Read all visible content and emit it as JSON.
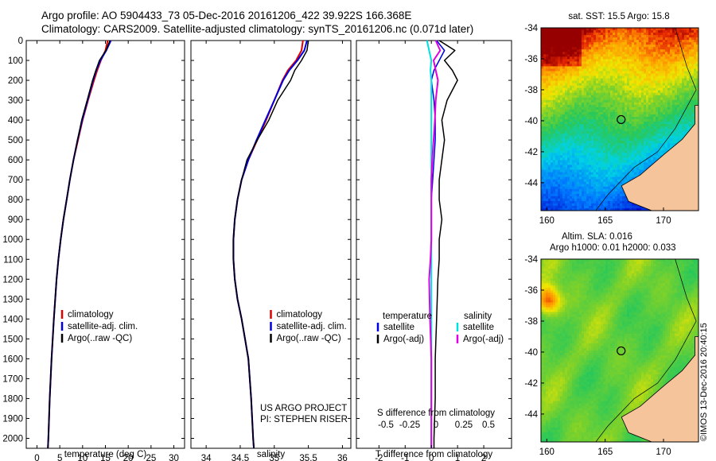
{
  "header": {
    "title_line1": "Argo profile: AO 5904433_73 05-Dec-2016 20161206_422 39.922S 166.368E",
    "title_line2": "Climatology: CARS2009. Satellite-adjusted climatology: synTS_20161206.nc (0.071d later)"
  },
  "colors": {
    "climatology": "#e00000",
    "satellite": "#0000e0",
    "argo": "#000000",
    "sat_salinity": "#00e0e0",
    "argo_adj_salinity": "#e000e0",
    "land": "#f5c49a"
  },
  "chart_data": [
    {
      "type": "line",
      "panel": "temperature",
      "xlabel": "temperature (deg C)",
      "ylabel": "",
      "xlim": [
        -2,
        32
      ],
      "ylim": [
        2050,
        0
      ],
      "xticks": [
        "0",
        "5",
        "10",
        "15",
        "20",
        "25",
        "30"
      ],
      "yticks": [
        "0",
        "100",
        "200",
        "300",
        "400",
        "500",
        "600",
        "700",
        "800",
        "900",
        "1000",
        "1100",
        "1200",
        "1300",
        "1400",
        "1500",
        "1600",
        "1700",
        "1800",
        "1900",
        "2000"
      ],
      "legend": [
        "climatology",
        "satellite-adj. clim.",
        "Argo(..raw -QC)"
      ],
      "depth": [
        0,
        50,
        100,
        150,
        200,
        300,
        400,
        500,
        600,
        700,
        800,
        900,
        1000,
        1100,
        1200,
        1400,
        1600,
        1800,
        2000,
        2050
      ],
      "series": [
        {
          "name": "climatology",
          "values": [
            15.5,
            15.0,
            14.0,
            13.2,
            12.5,
            11.2,
            10.0,
            9.0,
            8.0,
            7.2,
            6.5,
            5.8,
            5.2,
            4.7,
            4.3,
            3.7,
            3.2,
            2.8,
            2.5,
            2.4
          ]
        },
        {
          "name": "satellite-adj. clim.",
          "values": [
            16.2,
            15.2,
            13.9,
            13.0,
            12.3,
            11.1,
            9.9,
            8.9,
            8.0,
            7.2,
            6.5,
            5.8,
            5.2,
            4.7,
            4.3,
            3.7,
            3.2,
            2.8,
            2.5,
            2.4
          ]
        },
        {
          "name": "Argo(..raw -QC)",
          "values": [
            16.0,
            15.1,
            13.7,
            12.9,
            12.2,
            11.0,
            9.8,
            8.9,
            8.0,
            7.2,
            6.5,
            5.8,
            5.2,
            4.7,
            4.3,
            3.7,
            3.2,
            2.8,
            2.5,
            2.4
          ]
        }
      ]
    },
    {
      "type": "line",
      "panel": "salinity",
      "xlabel": "salinity",
      "xlim": [
        33.8,
        36.1
      ],
      "ylim": [
        2050,
        0
      ],
      "xticks": [
        "34",
        "34.5",
        "35",
        "35.5",
        "36"
      ],
      "legend": [
        "climatology",
        "satellite-adj. clim.",
        "Argo(..raw -QC)"
      ],
      "annotation_line1": "US ARGO PROJECT",
      "annotation_line2": "PI: STEPHEN RISER",
      "depth": [
        0,
        50,
        100,
        150,
        200,
        300,
        400,
        500,
        600,
        700,
        800,
        900,
        1000,
        1100,
        1200,
        1300,
        1400,
        1500,
        1600,
        1800,
        2000,
        2050
      ],
      "series": [
        {
          "name": "climatology",
          "values": [
            35.42,
            35.4,
            35.32,
            35.2,
            35.12,
            35.0,
            34.88,
            34.75,
            34.62,
            34.52,
            34.46,
            34.42,
            34.4,
            34.4,
            34.42,
            34.46,
            34.52,
            34.57,
            34.62,
            34.66,
            34.69,
            34.7
          ]
        },
        {
          "name": "satellite-adj. clim.",
          "values": [
            35.48,
            35.44,
            35.34,
            35.22,
            35.13,
            35.0,
            34.87,
            34.74,
            34.62,
            34.52,
            34.46,
            34.42,
            34.4,
            34.4,
            34.42,
            34.46,
            34.52,
            34.57,
            34.62,
            34.66,
            34.69,
            34.7
          ]
        },
        {
          "name": "Argo(..raw -QC)",
          "values": [
            35.5,
            35.48,
            35.4,
            35.3,
            35.24,
            35.05,
            34.92,
            34.75,
            34.6,
            34.52,
            34.46,
            34.42,
            34.4,
            34.4,
            34.42,
            34.46,
            34.52,
            34.57,
            34.62,
            34.66,
            34.69,
            34.7
          ]
        }
      ]
    },
    {
      "type": "line",
      "panel": "difference",
      "xlabel": "T difference from climatology",
      "x2label": "S difference from climatology",
      "xlim": [
        -2.8,
        3.0
      ],
      "ylim": [
        2050,
        0
      ],
      "xticks": [
        "-2",
        "-1",
        "0",
        "1",
        "2"
      ],
      "x2ticks": [
        "-0.5",
        "-0.25",
        "0",
        "0.25",
        "0.5"
      ],
      "legend_header_left": "temperature",
      "legend_header_right": "salinity",
      "legend": [
        "satellite",
        "Argo(-adj)",
        "satellite",
        "Argo(-adj)"
      ],
      "depth": [
        0,
        50,
        100,
        150,
        200,
        300,
        400,
        500,
        600,
        700,
        800,
        900,
        1000,
        1100,
        1200,
        1400,
        1600,
        1800,
        2000,
        2050
      ],
      "series": [
        {
          "name": "temperature satellite",
          "values": [
            0.2,
            0.5,
            0.3,
            0.1,
            0.0,
            0.1,
            0.15,
            0.15,
            0.1,
            0.05,
            0.0,
            0.0,
            0.0,
            0.0,
            0.0,
            0.0,
            0.0,
            0.0,
            0.0,
            0.0
          ]
        },
        {
          "name": "temperature Argo(-adj)",
          "values": [
            0.3,
            0.9,
            0.5,
            0.8,
            1.0,
            0.6,
            0.4,
            0.5,
            0.4,
            0.3,
            0.3,
            0.4,
            0.3,
            0.3,
            0.25,
            0.2,
            0.15,
            0.15,
            0.1,
            0.1
          ]
        },
        {
          "name": "salinity satellite",
          "values": [
            -0.1,
            -0.05,
            0.0,
            -0.02,
            0.0,
            0.0,
            0.0,
            0.0,
            0.0,
            0.0,
            0.0,
            0.0,
            0.0,
            0.0,
            0.0,
            0.0,
            0.0,
            0.0,
            0.0,
            0.0
          ]
        },
        {
          "name": "salinity Argo(-adj)",
          "values": [
            0.1,
            0.2,
            0.05,
            0.1,
            0.15,
            0.1,
            0.08,
            0.05,
            0.02,
            0.0,
            0.0,
            0.0,
            0.0,
            -0.02,
            -0.05,
            -0.03,
            0.0,
            0.0,
            0.0,
            0.0
          ]
        }
      ]
    },
    {
      "type": "heatmap",
      "panel": "sst-map",
      "title": "sat. SST: 15.5  Argo: 15.8",
      "xlim": [
        159.5,
        173
      ],
      "ylim": [
        -45.8,
        -34
      ],
      "xticks": [
        "160",
        "165",
        "170"
      ],
      "yticks": [
        "-34",
        "-36",
        "-38",
        "-40",
        "-42",
        "-44"
      ],
      "marker": {
        "lon": 166.368,
        "lat": -39.922
      }
    },
    {
      "type": "heatmap",
      "panel": "sla-map",
      "title": "Altim. SLA: 0.016",
      "subtitle": "Argo h1000: 0.01 h2000: 0.033",
      "xlim": [
        159.5,
        173
      ],
      "ylim": [
        -45.8,
        -34
      ],
      "xticks": [
        "160",
        "165",
        "170"
      ],
      "yticks": [
        "-34",
        "-36",
        "-38",
        "-40",
        "-42",
        "-44"
      ],
      "marker": {
        "lon": 166.368,
        "lat": -39.922
      }
    }
  ],
  "footer": {
    "credit": "©IMOS 13-Dec-2016 20:40:15"
  }
}
